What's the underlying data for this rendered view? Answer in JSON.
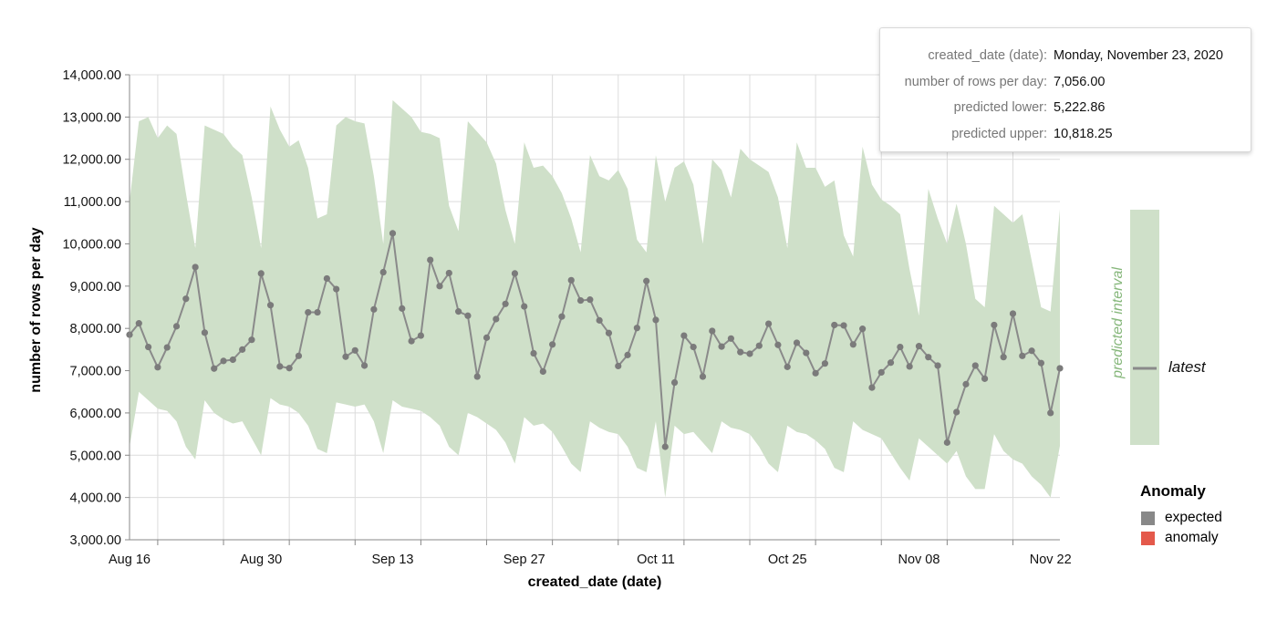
{
  "colors": {
    "interval_fill": "#cfe0c9",
    "interval_label": "#86b77b",
    "line": "#8a8a8a",
    "point": "#7b7b7b",
    "grid": "#dcdcdc",
    "axis": "#888888",
    "expected": "#888888",
    "anomaly": "#e4594b"
  },
  "tooltip": {
    "rows": [
      {
        "key": "created_date (date):",
        "value": "Monday, November 23, 2020"
      },
      {
        "key": "number of rows per day:",
        "value": "7,056.00"
      },
      {
        "key": "predicted lower:",
        "value": "5,222.86"
      },
      {
        "key": "predicted upper:",
        "value": "10,818.25"
      }
    ]
  },
  "legend": {
    "interval_label": "predicted interval",
    "latest_label": "latest",
    "anomaly_title": "Anomaly",
    "anomaly_items": [
      {
        "label": "expected",
        "color": "#888888"
      },
      {
        "label": "anomaly",
        "color": "#e4594b"
      }
    ]
  },
  "chart_data": {
    "type": "line",
    "xlabel": "created_date (date)",
    "ylabel": "number of rows per day",
    "ylim": [
      3000,
      14000
    ],
    "yticks": [
      3000,
      4000,
      5000,
      6000,
      7000,
      8000,
      9000,
      10000,
      11000,
      12000,
      13000,
      14000
    ],
    "ytick_labels": [
      "3,000.00",
      "4,000.00",
      "5,000.00",
      "6,000.00",
      "7,000.00",
      "8,000.00",
      "9,000.00",
      "10,000.00",
      "11,000.00",
      "12,000.00",
      "13,000.00",
      "14,000.00"
    ],
    "xlim": [
      "2020-08-16",
      "2020-11-23"
    ],
    "xtick_labels": [
      {
        "date": "2020-08-16",
        "label": "Aug 16"
      },
      {
        "date": "2020-08-30",
        "label": "Aug 30"
      },
      {
        "date": "2020-09-13",
        "label": "Sep 13"
      },
      {
        "date": "2020-09-27",
        "label": "Sep 27"
      },
      {
        "date": "2020-10-11",
        "label": "Oct 11"
      },
      {
        "date": "2020-10-25",
        "label": "Oct 25"
      },
      {
        "date": "2020-11-08",
        "label": "Nov 08"
      },
      {
        "date": "2020-11-22",
        "label": "Nov 22"
      }
    ],
    "x": [
      "2020-08-16",
      "2020-08-17",
      "2020-08-18",
      "2020-08-19",
      "2020-08-20",
      "2020-08-21",
      "2020-08-22",
      "2020-08-23",
      "2020-08-24",
      "2020-08-25",
      "2020-08-26",
      "2020-08-27",
      "2020-08-28",
      "2020-08-29",
      "2020-08-30",
      "2020-08-31",
      "2020-09-01",
      "2020-09-02",
      "2020-09-03",
      "2020-09-04",
      "2020-09-05",
      "2020-09-06",
      "2020-09-07",
      "2020-09-08",
      "2020-09-09",
      "2020-09-10",
      "2020-09-11",
      "2020-09-12",
      "2020-09-13",
      "2020-09-14",
      "2020-09-15",
      "2020-09-16",
      "2020-09-17",
      "2020-09-18",
      "2020-09-19",
      "2020-09-20",
      "2020-09-21",
      "2020-09-22",
      "2020-09-23",
      "2020-09-24",
      "2020-09-25",
      "2020-09-26",
      "2020-09-27",
      "2020-09-28",
      "2020-09-29",
      "2020-09-30",
      "2020-10-01",
      "2020-10-02",
      "2020-10-03",
      "2020-10-04",
      "2020-10-05",
      "2020-10-06",
      "2020-10-07",
      "2020-10-08",
      "2020-10-09",
      "2020-10-10",
      "2020-10-11",
      "2020-10-12",
      "2020-10-13",
      "2020-10-14",
      "2020-10-15",
      "2020-10-16",
      "2020-10-17",
      "2020-10-18",
      "2020-10-19",
      "2020-10-20",
      "2020-10-21",
      "2020-10-22",
      "2020-10-23",
      "2020-10-24",
      "2020-10-25",
      "2020-10-26",
      "2020-10-27",
      "2020-10-28",
      "2020-10-29",
      "2020-10-30",
      "2020-10-31",
      "2020-11-01",
      "2020-11-02",
      "2020-11-03",
      "2020-11-04",
      "2020-11-05",
      "2020-11-06",
      "2020-11-07",
      "2020-11-08",
      "2020-11-09",
      "2020-11-10",
      "2020-11-11",
      "2020-11-12",
      "2020-11-13",
      "2020-11-14",
      "2020-11-15",
      "2020-11-16",
      "2020-11-17",
      "2020-11-18",
      "2020-11-19",
      "2020-11-20",
      "2020-11-21",
      "2020-11-22",
      "2020-11-23"
    ],
    "series": [
      {
        "values": [
          7850,
          8120,
          7560,
          7080,
          7550,
          8050,
          8700,
          9450,
          7900,
          7050,
          7230,
          7260,
          7500,
          7730,
          9300,
          8550,
          7100,
          7060,
          7350,
          8380,
          8380,
          9180,
          8930,
          7330,
          7480,
          7120,
          8450,
          9330,
          10250,
          8470,
          7700,
          7830,
          9620,
          9000,
          9310,
          8400,
          8300,
          6860,
          7780,
          8220,
          8580,
          9300,
          8520,
          7410,
          6980,
          7620,
          8280,
          9140,
          8660,
          8680,
          8190,
          7890,
          7110,
          7370,
          8010,
          9120,
          8200,
          5200,
          6720,
          7830,
          7560,
          6860,
          7940,
          7570,
          7760,
          7440,
          7400,
          7590,
          8110,
          7610,
          7090,
          7660,
          7420,
          6940,
          7170,
          8080,
          8070,
          7620,
          7990,
          6600,
          6960,
          7190,
          7560,
          7100,
          7580,
          7320,
          7120,
          5300,
          6020,
          6680,
          7120,
          6810,
          8080,
          7320,
          8350,
          7350,
          7470,
          7180,
          6000,
          7056
        ]
      }
    ],
    "interval": {
      "upper": [
        11000,
        12900,
        13000,
        12500,
        12800,
        12600,
        11200,
        9900,
        12800,
        12700,
        12600,
        12300,
        12100,
        11100,
        9900,
        13250,
        12700,
        12300,
        12450,
        11800,
        10600,
        10700,
        12800,
        13000,
        12900,
        12850,
        11600,
        10000,
        13400,
        13200,
        13000,
        12650,
        12600,
        12500,
        10900,
        10300,
        12900,
        12650,
        12400,
        11900,
        10800,
        10000,
        12400,
        11800,
        11850,
        11600,
        11200,
        10600,
        9800,
        12100,
        11600,
        11500,
        11750,
        11300,
        10100,
        9800,
        12100,
        11000,
        11800,
        11950,
        11400,
        10000,
        12000,
        11750,
        11100,
        12250,
        12000,
        11850,
        11700,
        11100,
        9900,
        12400,
        11800,
        11800,
        11350,
        11500,
        10200,
        9700,
        12300,
        11400,
        11050,
        10900,
        10700,
        9400,
        8300,
        11300,
        10600,
        10000,
        10950,
        10000,
        8700,
        8500,
        10900,
        10700,
        10500,
        10700,
        9600,
        8500,
        8400,
        10818.25
      ],
      "lower": [
        5200,
        6500,
        6300,
        6100,
        6050,
        5800,
        5200,
        4900,
        6300,
        6000,
        5850,
        5750,
        5800,
        5400,
        5000,
        6350,
        6200,
        6150,
        6000,
        5700,
        5150,
        5050,
        6250,
        6200,
        6150,
        6200,
        5800,
        5050,
        6300,
        6150,
        6100,
        6050,
        5900,
        5700,
        5200,
        5000,
        6000,
        5900,
        5750,
        5600,
        5300,
        4800,
        5900,
        5700,
        5750,
        5550,
        5200,
        4800,
        4600,
        5800,
        5650,
        5550,
        5500,
        5200,
        4700,
        4600,
        5800,
        4000,
        5700,
        5500,
        5550,
        5300,
        5050,
        5800,
        5650,
        5600,
        5500,
        5200,
        4800,
        4600,
        5700,
        5550,
        5500,
        5350,
        5150,
        4700,
        4600,
        5800,
        5600,
        5500,
        5400,
        5050,
        4700,
        4400,
        5400,
        5200,
        5000,
        4800,
        5100,
        4500,
        4200,
        4200,
        5500,
        5100,
        4900,
        4800,
        4500,
        4300,
        4000,
        5222.86
      ]
    }
  }
}
